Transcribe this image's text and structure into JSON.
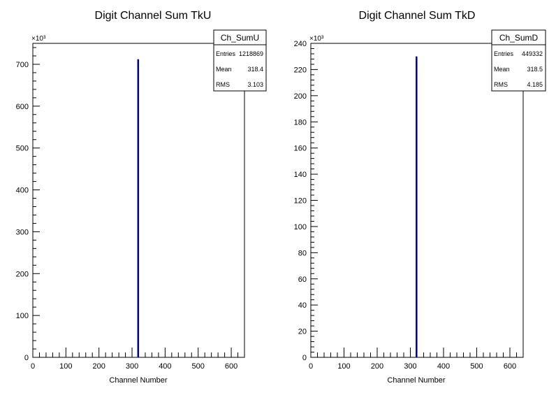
{
  "chart_data": [
    {
      "type": "bar",
      "title": "Digit Channel Sum TkU",
      "xlabel": "Channel Number",
      "ylabel": "",
      "y_multiplier_label": "×10³",
      "xlim": [
        0,
        640
      ],
      "ylim": [
        0,
        750
      ],
      "y_units": "×10³",
      "x_ticks": [
        "0",
        "100",
        "200",
        "300",
        "400",
        "500",
        "600"
      ],
      "y_ticks": [
        "0",
        "100",
        "200",
        "300",
        "400",
        "500",
        "600",
        "700"
      ],
      "x_tick_values": [
        0,
        100,
        200,
        300,
        400,
        500,
        600
      ],
      "y_tick_values": [
        0,
        100,
        200,
        300,
        400,
        500,
        600,
        700
      ],
      "y_minor_step": 20,
      "x_minor_step": 20,
      "bars": [
        {
          "x": 318,
          "value": 712
        }
      ],
      "line_color": "#000080",
      "stats_box": {
        "name": "Ch_SumU",
        "rows": [
          {
            "label": "Entries",
            "value": "1218869"
          },
          {
            "label": "Mean",
            "value": "318.4"
          },
          {
            "label": "RMS",
            "value": "3.103"
          }
        ]
      },
      "grid": false
    },
    {
      "type": "bar",
      "title": "Digit Channel Sum TkD",
      "xlabel": "Channel Number",
      "ylabel": "",
      "y_multiplier_label": "×10³",
      "xlim": [
        0,
        640
      ],
      "ylim": [
        0,
        240
      ],
      "y_units": "×10³",
      "x_ticks": [
        "0",
        "100",
        "200",
        "300",
        "400",
        "500",
        "600"
      ],
      "y_ticks": [
        "0",
        "20",
        "40",
        "60",
        "80",
        "100",
        "120",
        "140",
        "160",
        "180",
        "200",
        "220",
        "240"
      ],
      "x_tick_values": [
        0,
        100,
        200,
        300,
        400,
        500,
        600
      ],
      "y_tick_values": [
        0,
        20,
        40,
        60,
        80,
        100,
        120,
        140,
        160,
        180,
        200,
        220,
        240
      ],
      "y_minor_step": 4,
      "x_minor_step": 20,
      "bars": [
        {
          "x": 318,
          "value": 230
        }
      ],
      "line_color": "#000080",
      "stats_box": {
        "name": "Ch_SumD",
        "rows": [
          {
            "label": "Entries",
            "value": "449332"
          },
          {
            "label": "Mean",
            "value": "318.5"
          },
          {
            "label": "RMS",
            "value": "4.185"
          }
        ]
      },
      "grid": false
    }
  ]
}
